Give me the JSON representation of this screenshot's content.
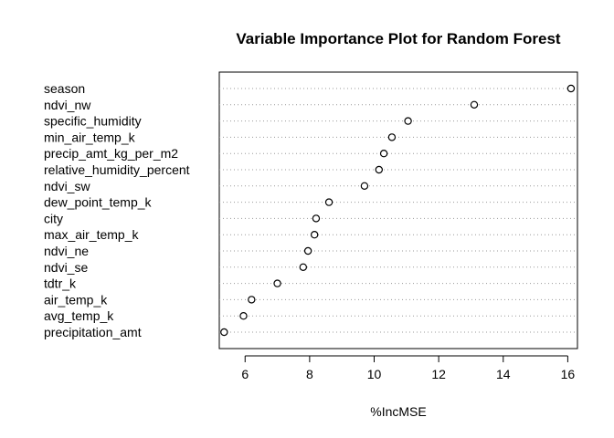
{
  "chart_data": {
    "type": "scatter",
    "title": "Variable Importance Plot for Random Forest",
    "xlabel": "%IncMSE",
    "ylabel": "",
    "xlim": [
      5.2,
      16.3
    ],
    "xticks": [
      6,
      8,
      10,
      12,
      14,
      16
    ],
    "grid": "horizontal dotted",
    "categories": [
      "season",
      "ndvi_nw",
      "specific_humidity",
      "min_air_temp_k",
      "precip_amt_kg_per_m2",
      "relative_humidity_percent",
      "ndvi_sw",
      "dew_point_temp_k",
      "city",
      "max_air_temp_k",
      "ndvi_ne",
      "ndvi_se",
      "tdtr_k",
      "air_temp_k",
      "avg_temp_k",
      "precipitation_amt"
    ],
    "values": [
      16.1,
      13.1,
      11.05,
      10.55,
      10.3,
      10.15,
      9.7,
      8.6,
      8.2,
      8.15,
      7.95,
      7.8,
      7.0,
      6.2,
      5.95,
      5.35
    ]
  }
}
